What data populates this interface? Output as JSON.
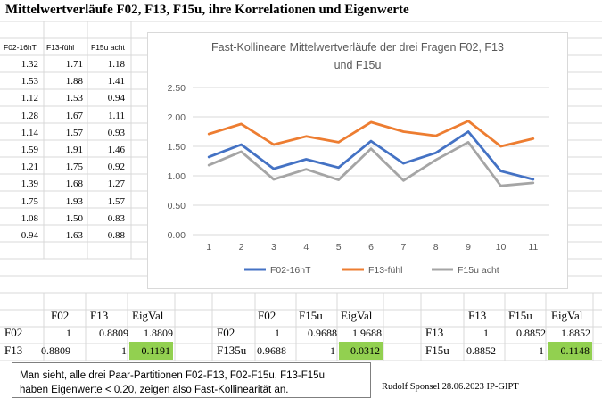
{
  "sheet": {
    "title": "Mittelwertverläufe F02, F13, F15u, ihre Korrelationen und  Eigenwerte",
    "columns": [
      "F02-16hT",
      "F13-fühl",
      "F15u acht"
    ],
    "rows": [
      [
        "1.32",
        "1.71",
        "1.18"
      ],
      [
        "1.53",
        "1.88",
        "1.41"
      ],
      [
        "1.12",
        "1.53",
        "0.94"
      ],
      [
        "1.28",
        "1.67",
        "1.11"
      ],
      [
        "1.14",
        "1.57",
        "0.93"
      ],
      [
        "1.59",
        "1.91",
        "1.46"
      ],
      [
        "1.21",
        "1.75",
        "0.92"
      ],
      [
        "1.39",
        "1.68",
        "1.27"
      ],
      [
        "1.75",
        "1.93",
        "1.57"
      ],
      [
        "1.08",
        "1.50",
        "0.83"
      ],
      [
        "0.94",
        "1.63",
        "0.88"
      ]
    ]
  },
  "chart_data": {
    "type": "line",
    "title": "Fast-Kollineare Mittelwertverläufe der drei Fragen F02, F13",
    "title_line2": "und F15u",
    "xlabel": "",
    "ylabel": "",
    "categories": [
      "1",
      "2",
      "3",
      "4",
      "5",
      "6",
      "7",
      "8",
      "9",
      "10",
      "11"
    ],
    "y_ticks": [
      "0.00",
      "0.50",
      "1.00",
      "1.50",
      "2.00",
      "2.50"
    ],
    "ylim": [
      0,
      2.5
    ],
    "grid": true,
    "legend_position": "bottom",
    "series": [
      {
        "name": "F02-16hT",
        "color": "#4472c4",
        "values": [
          1.32,
          1.53,
          1.12,
          1.28,
          1.14,
          1.59,
          1.21,
          1.39,
          1.75,
          1.08,
          0.94
        ]
      },
      {
        "name": "F13-fühl",
        "color": "#ed7d31",
        "values": [
          1.71,
          1.88,
          1.53,
          1.67,
          1.57,
          1.91,
          1.75,
          1.68,
          1.93,
          1.5,
          1.63
        ]
      },
      {
        "name": "F15u acht",
        "color": "#a5a5a5",
        "values": [
          1.18,
          1.41,
          0.94,
          1.11,
          0.93,
          1.46,
          0.92,
          1.27,
          1.57,
          0.83,
          0.88
        ]
      }
    ]
  },
  "matrices": [
    {
      "col1": "F02",
      "col2": "F13",
      "eig": "EigVal",
      "row1": {
        "label": "F02",
        "a": "1",
        "b": "0.8809",
        "eig": "1.8809"
      },
      "row2": {
        "label": "F13",
        "a": "0.8809",
        "b": "1",
        "eig": "0.1191"
      }
    },
    {
      "col1": "F02",
      "col2": "F15u",
      "eig": "EigVal",
      "row1": {
        "label": "F02",
        "a": "1",
        "b": "0.9688",
        "eig": "1.9688"
      },
      "row2": {
        "label": "F135u",
        "a": "0.9688",
        "b": "1",
        "eig": "0.0312"
      }
    },
    {
      "col1": "F13",
      "col2": "F15u",
      "eig": "EigVal",
      "row1": {
        "label": "F13",
        "a": "1",
        "b": "0.8852",
        "eig": "1.8852"
      },
      "row2": {
        "label": "F15u",
        "a": "0.8852",
        "b": "1",
        "eig": "0.1148"
      }
    }
  ],
  "note": {
    "line1": "Man sieht, alle drei Paar-Partitionen F02-F13, F02-F15u, F13-F15u",
    "line2": "haben Eigenwerte < 0.20, zeigen also Fast-Kollinearität an."
  },
  "credit": "Rudolf Sponsel 28.06.2023 IP-GIPT",
  "colors": {
    "highlight": "#92d050",
    "gridline": "#d9d9d9"
  }
}
